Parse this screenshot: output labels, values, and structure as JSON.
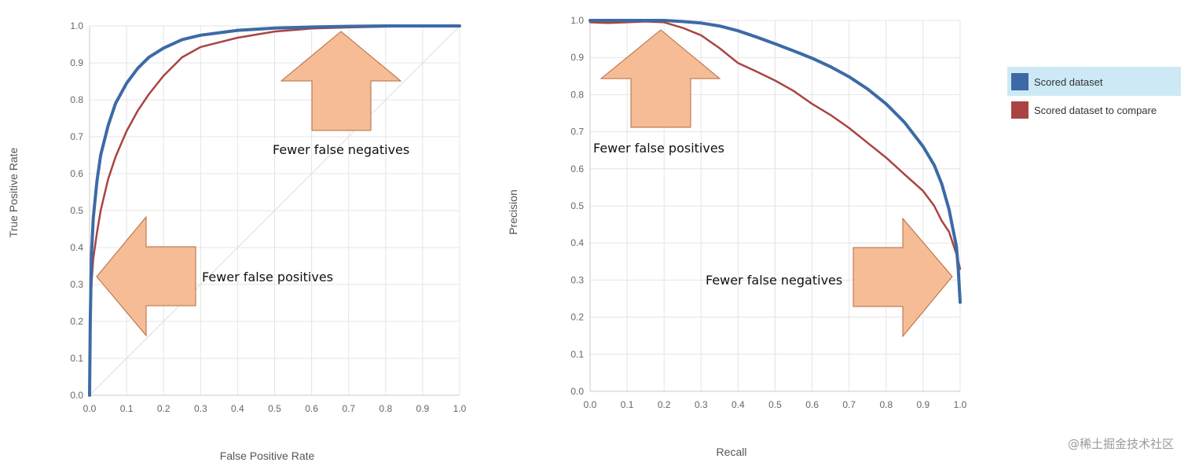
{
  "chart_data": [
    {
      "type": "line",
      "name": "roc",
      "xlabel": "False Positive Rate",
      "ylabel": "True Positive Rate",
      "xlim": [
        0,
        1
      ],
      "ylim": [
        0,
        1
      ],
      "xticks": [
        "0.0",
        "0.1",
        "0.2",
        "0.3",
        "0.4",
        "0.5",
        "0.6",
        "0.7",
        "0.8",
        "0.9",
        "1.0"
      ],
      "yticks": [
        "0.0",
        "0.1",
        "0.2",
        "0.3",
        "0.4",
        "0.5",
        "0.6",
        "0.7",
        "0.8",
        "0.9",
        "1.0"
      ],
      "grid": true,
      "series": [
        {
          "name": "Scored dataset",
          "color": "#3d6aa6",
          "x": [
            0,
            0.002,
            0.005,
            0.01,
            0.02,
            0.03,
            0.05,
            0.07,
            0.1,
            0.13,
            0.16,
            0.2,
            0.25,
            0.3,
            0.4,
            0.5,
            0.6,
            0.7,
            0.8,
            0.9,
            1.0
          ],
          "y": [
            0,
            0.2,
            0.38,
            0.48,
            0.58,
            0.65,
            0.73,
            0.79,
            0.845,
            0.885,
            0.915,
            0.94,
            0.963,
            0.975,
            0.988,
            0.994,
            0.997,
            0.999,
            1.0,
            1.0,
            1.0
          ]
        },
        {
          "name": "Scored dataset to compare",
          "color": "#a94442",
          "x": [
            0,
            0.002,
            0.005,
            0.01,
            0.02,
            0.03,
            0.05,
            0.07,
            0.1,
            0.13,
            0.16,
            0.2,
            0.25,
            0.3,
            0.4,
            0.5,
            0.6,
            0.7,
            0.8,
            0.9,
            1.0
          ],
          "y": [
            0,
            0.2,
            0.3,
            0.37,
            0.44,
            0.5,
            0.585,
            0.645,
            0.715,
            0.77,
            0.815,
            0.865,
            0.915,
            0.943,
            0.968,
            0.985,
            0.993,
            0.996,
            0.998,
            0.999,
            1.0
          ]
        },
        {
          "name": "Diagonal",
          "color": "#dddddd",
          "x": [
            0,
            1
          ],
          "y": [
            0,
            1
          ]
        }
      ],
      "annotations": [
        {
          "text": "Fewer false negatives",
          "arrow": "up"
        },
        {
          "text": "Fewer false positives",
          "arrow": "left"
        }
      ]
    },
    {
      "type": "line",
      "name": "pr",
      "xlabel": "Recall",
      "ylabel": "Precision",
      "xlim": [
        0,
        1
      ],
      "ylim": [
        0,
        1
      ],
      "xticks": [
        "0.0",
        "0.1",
        "0.2",
        "0.3",
        "0.4",
        "0.5",
        "0.6",
        "0.7",
        "0.8",
        "0.9",
        "1.0"
      ],
      "yticks": [
        "0.0",
        "0.1",
        "0.2",
        "0.3",
        "0.4",
        "0.5",
        "0.6",
        "0.7",
        "0.8",
        "0.9",
        "1.0"
      ],
      "grid": true,
      "series": [
        {
          "name": "Scored dataset",
          "color": "#3d6aa6",
          "x": [
            0,
            0.05,
            0.1,
            0.2,
            0.25,
            0.3,
            0.35,
            0.4,
            0.45,
            0.5,
            0.55,
            0.6,
            0.65,
            0.7,
            0.75,
            0.8,
            0.85,
            0.9,
            0.93,
            0.95,
            0.97,
            0.98,
            0.99,
            0.995,
            1.0
          ],
          "y": [
            1.0,
            1.0,
            1.0,
            1.0,
            0.997,
            0.993,
            0.985,
            0.972,
            0.955,
            0.937,
            0.918,
            0.898,
            0.875,
            0.848,
            0.815,
            0.775,
            0.725,
            0.66,
            0.61,
            0.56,
            0.49,
            0.44,
            0.39,
            0.33,
            0.24
          ]
        },
        {
          "name": "Scored dataset to compare",
          "color": "#a94442",
          "x": [
            0,
            0.05,
            0.1,
            0.15,
            0.2,
            0.25,
            0.3,
            0.35,
            0.4,
            0.45,
            0.5,
            0.55,
            0.6,
            0.65,
            0.7,
            0.75,
            0.8,
            0.85,
            0.9,
            0.93,
            0.95,
            0.97,
            0.98,
            0.99,
            1.0
          ],
          "y": [
            0.995,
            0.993,
            0.995,
            0.997,
            0.995,
            0.98,
            0.96,
            0.925,
            0.885,
            0.862,
            0.838,
            0.81,
            0.775,
            0.745,
            0.71,
            0.67,
            0.63,
            0.585,
            0.54,
            0.5,
            0.46,
            0.43,
            0.4,
            0.37,
            0.33
          ]
        }
      ],
      "annotations": [
        {
          "text": "Fewer false positives",
          "arrow": "up"
        },
        {
          "text": "Fewer false negatives",
          "arrow": "right"
        }
      ]
    }
  ],
  "legend": {
    "items": [
      {
        "label": "Scored dataset",
        "color": "#3d6aa6",
        "highlight": "#cde9f6"
      },
      {
        "label": "Scored dataset to compare",
        "color": "#a94442"
      }
    ]
  },
  "watermark": "@稀土掘金技术社区",
  "colors": {
    "grid": "#e4e4e4",
    "axis": "#c8c8c8",
    "arrow_fill": "#f6bc96",
    "arrow_stroke": "#b66a3e"
  }
}
